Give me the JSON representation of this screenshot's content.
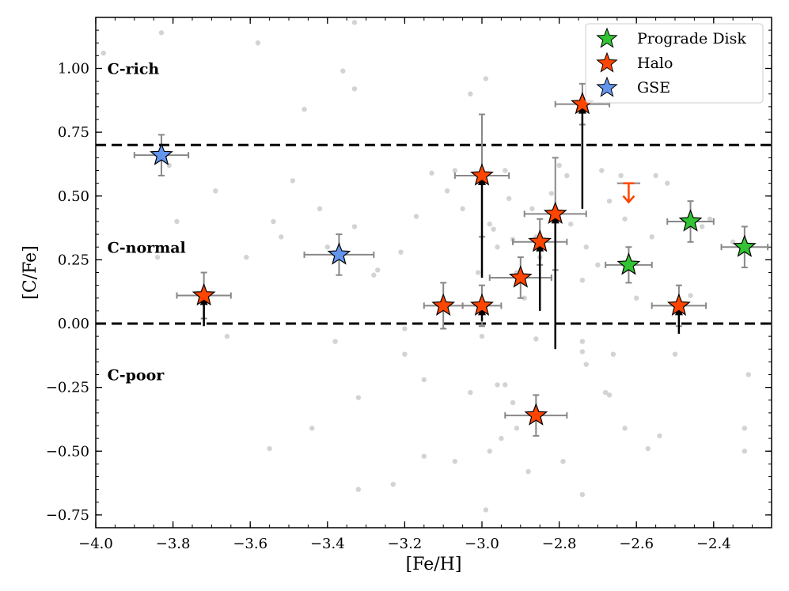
{
  "chart_data": {
    "type": "scatter",
    "xlabel": "[Fe/H]",
    "ylabel": "[C/Fe]",
    "xlim": [
      -4.0,
      -2.25
    ],
    "ylim": [
      -0.8,
      1.2
    ],
    "xticks": [
      -4.0,
      -3.8,
      -3.6,
      -3.4,
      -3.2,
      -3.0,
      -2.8,
      -2.6,
      -2.4
    ],
    "xtick_labels": [
      "−4.0",
      "−3.8",
      "−3.6",
      "−3.4",
      "−3.2",
      "−3.0",
      "−2.8",
      "−2.6",
      "−2.4"
    ],
    "yticks": [
      1.0,
      0.75,
      0.5,
      0.25,
      0.0,
      -0.25,
      -0.5,
      -0.75
    ],
    "ytick_labels": [
      "1.00",
      "0.75",
      "0.50",
      "0.25",
      "0.00",
      "−0.25",
      "−0.50",
      "−0.75"
    ],
    "reference_lines": [
      {
        "y": 0.7,
        "style": "dashed"
      },
      {
        "y": 0.0,
        "style": "dashed"
      }
    ],
    "region_labels": [
      {
        "text": "C-rich",
        "x": -3.97,
        "y": 1.0
      },
      {
        "text": "C-normal",
        "x": -3.97,
        "y": 0.3
      },
      {
        "text": "C-poor",
        "x": -3.97,
        "y": -0.2
      }
    ],
    "legend": {
      "position": "top-right",
      "entries": [
        {
          "label": "Prograde Disk",
          "color": "#33c433"
        },
        {
          "label": "Halo",
          "color": "#ff4500"
        },
        {
          "label": "GSE",
          "color": "#6495ed"
        }
      ]
    },
    "background_points": {
      "color": "#d3d3d3",
      "points": [
        [
          -3.98,
          1.06
        ],
        [
          -3.83,
          1.14
        ],
        [
          -3.58,
          1.1
        ],
        [
          -3.33,
          1.18
        ],
        [
          -3.33,
          0.92
        ],
        [
          -3.36,
          0.99
        ],
        [
          -3.46,
          0.84
        ],
        [
          -3.81,
          0.62
        ],
        [
          -3.79,
          0.4
        ],
        [
          -3.69,
          0.52
        ],
        [
          -3.84,
          0.26
        ],
        [
          -3.61,
          0.26
        ],
        [
          -3.54,
          0.4
        ],
        [
          -3.52,
          0.34
        ],
        [
          -3.49,
          0.56
        ],
        [
          -3.42,
          0.45
        ],
        [
          -3.4,
          0.3
        ],
        [
          -3.33,
          0.38
        ],
        [
          -3.28,
          0.19
        ],
        [
          -3.27,
          0.21
        ],
        [
          -3.21,
          0.28
        ],
        [
          -3.17,
          0.42
        ],
        [
          -3.13,
          0.59
        ],
        [
          -3.09,
          0.52
        ],
        [
          -3.07,
          0.6
        ],
        [
          -3.05,
          0.45
        ],
        [
          -3.03,
          0.9
        ],
        [
          -3.01,
          0.2
        ],
        [
          -2.99,
          0.96
        ],
        [
          -2.98,
          0.39
        ],
        [
          -2.97,
          0.37
        ],
        [
          -2.96,
          0.3
        ],
        [
          -2.94,
          0.6
        ],
        [
          -2.93,
          0.49
        ],
        [
          -2.92,
          0.33
        ],
        [
          -2.91,
          0.2
        ],
        [
          -2.89,
          0.1
        ],
        [
          -2.87,
          0.45
        ],
        [
          -2.86,
          0.34
        ],
        [
          -2.85,
          0.26
        ],
        [
          -2.82,
          0.51
        ],
        [
          -2.8,
          0.62
        ],
        [
          -2.78,
          0.58
        ],
        [
          -2.77,
          0.39
        ],
        [
          -2.74,
          0.17
        ],
        [
          -2.73,
          0.3
        ],
        [
          -2.7,
          0.23
        ],
        [
          -2.67,
          0.48
        ],
        [
          -2.64,
          0.58
        ],
        [
          -2.62,
          0.22
        ],
        [
          -2.6,
          0.1
        ],
        [
          -2.56,
          0.34
        ],
        [
          -2.55,
          0.58
        ],
        [
          -2.52,
          0.55
        ],
        [
          -2.5,
          0.05
        ],
        [
          -2.46,
          0.11
        ],
        [
          -2.43,
          0.38
        ],
        [
          -2.41,
          0.41
        ],
        [
          -2.35,
          0.32
        ],
        [
          -2.63,
          0.41
        ],
        [
          -2.69,
          0.6
        ],
        [
          -3.66,
          -0.05
        ],
        [
          -3.55,
          -0.49
        ],
        [
          -3.44,
          -0.41
        ],
        [
          -3.38,
          -0.07
        ],
        [
          -3.32,
          -0.29
        ],
        [
          -3.32,
          -0.65
        ],
        [
          -3.23,
          -0.63
        ],
        [
          -3.2,
          -0.12
        ],
        [
          -3.2,
          -0.02
        ],
        [
          -3.15,
          -0.22
        ],
        [
          -3.15,
          -0.52
        ],
        [
          -3.07,
          -0.54
        ],
        [
          -3.03,
          -0.27
        ],
        [
          -3.0,
          -0.05
        ],
        [
          -2.99,
          -0.73
        ],
        [
          -2.98,
          -0.5
        ],
        [
          -2.96,
          -0.24
        ],
        [
          -2.95,
          -0.45
        ],
        [
          -2.94,
          -0.24
        ],
        [
          -2.92,
          -0.31
        ],
        [
          -2.91,
          -0.41
        ],
        [
          -2.88,
          -0.58
        ],
        [
          -2.86,
          -0.06
        ],
        [
          -2.79,
          -0.54
        ],
        [
          -2.74,
          -0.07
        ],
        [
          -2.74,
          -0.11
        ],
        [
          -2.74,
          -0.67
        ],
        [
          -2.73,
          -0.16
        ],
        [
          -2.68,
          -0.27
        ],
        [
          -2.67,
          -0.28
        ],
        [
          -2.66,
          -0.12
        ],
        [
          -2.63,
          -0.41
        ],
        [
          -2.57,
          -0.49
        ],
        [
          -2.54,
          -0.44
        ],
        [
          -2.5,
          -0.12
        ],
        [
          -2.31,
          -0.2
        ],
        [
          -2.32,
          -0.41
        ],
        [
          -2.32,
          -0.5
        ]
      ]
    },
    "series": [
      {
        "name": "Prograde Disk",
        "marker": "star",
        "color": "#33c433",
        "points": [
          {
            "x": -2.62,
            "y": 0.23,
            "xerr": 0.06,
            "yerr": 0.07
          },
          {
            "x": -2.46,
            "y": 0.4,
            "xerr": 0.06,
            "yerr": 0.08
          },
          {
            "x": -2.32,
            "y": 0.3,
            "xerr": 0.06,
            "yerr": 0.08
          }
        ]
      },
      {
        "name": "Halo",
        "marker": "star",
        "color": "#ff4500",
        "points": [
          {
            "x": -3.72,
            "y": 0.11,
            "xerr": 0.07,
            "yerr": 0.09,
            "arrow_from": -0.01
          },
          {
            "x": -3.1,
            "y": 0.07,
            "xerr": 0.05,
            "yerr": 0.09
          },
          {
            "x": -3.0,
            "y": 0.07,
            "xerr": 0.05,
            "yerr": 0.08,
            "arrow_from": 0.01
          },
          {
            "x": -3.0,
            "y": 0.58,
            "xerr": 0.07,
            "yerr": 0.24,
            "arrow_from": 0.18
          },
          {
            "x": -2.9,
            "y": 0.18,
            "xerr": 0.08,
            "yerr": 0.08
          },
          {
            "x": -2.85,
            "y": 0.32,
            "xerr": 0.07,
            "yerr": 0.09,
            "arrow_from": 0.05
          },
          {
            "x": -2.81,
            "y": 0.43,
            "xerr": 0.08,
            "yerr": 0.22,
            "arrow_from": -0.1
          },
          {
            "x": -2.74,
            "y": 0.86,
            "xerr": 0.07,
            "yerr": 0.08,
            "arrow_from": 0.45
          },
          {
            "x": -2.49,
            "y": 0.07,
            "xerr": 0.07,
            "yerr": 0.08,
            "arrow_from": -0.04
          },
          {
            "x": -2.86,
            "y": -0.36,
            "xerr": 0.08,
            "yerr": 0.08
          }
        ]
      },
      {
        "name": "GSE",
        "marker": "star",
        "color": "#6495ed",
        "points": [
          {
            "x": -3.83,
            "y": 0.66,
            "xerr": 0.07,
            "yerr": 0.08
          },
          {
            "x": -3.37,
            "y": 0.27,
            "xerr": 0.09,
            "yerr": 0.08
          }
        ]
      }
    ],
    "upper_limits": [
      {
        "x": -2.62,
        "y": 0.55,
        "xerr": 0.03,
        "color": "#ff4500"
      }
    ]
  }
}
